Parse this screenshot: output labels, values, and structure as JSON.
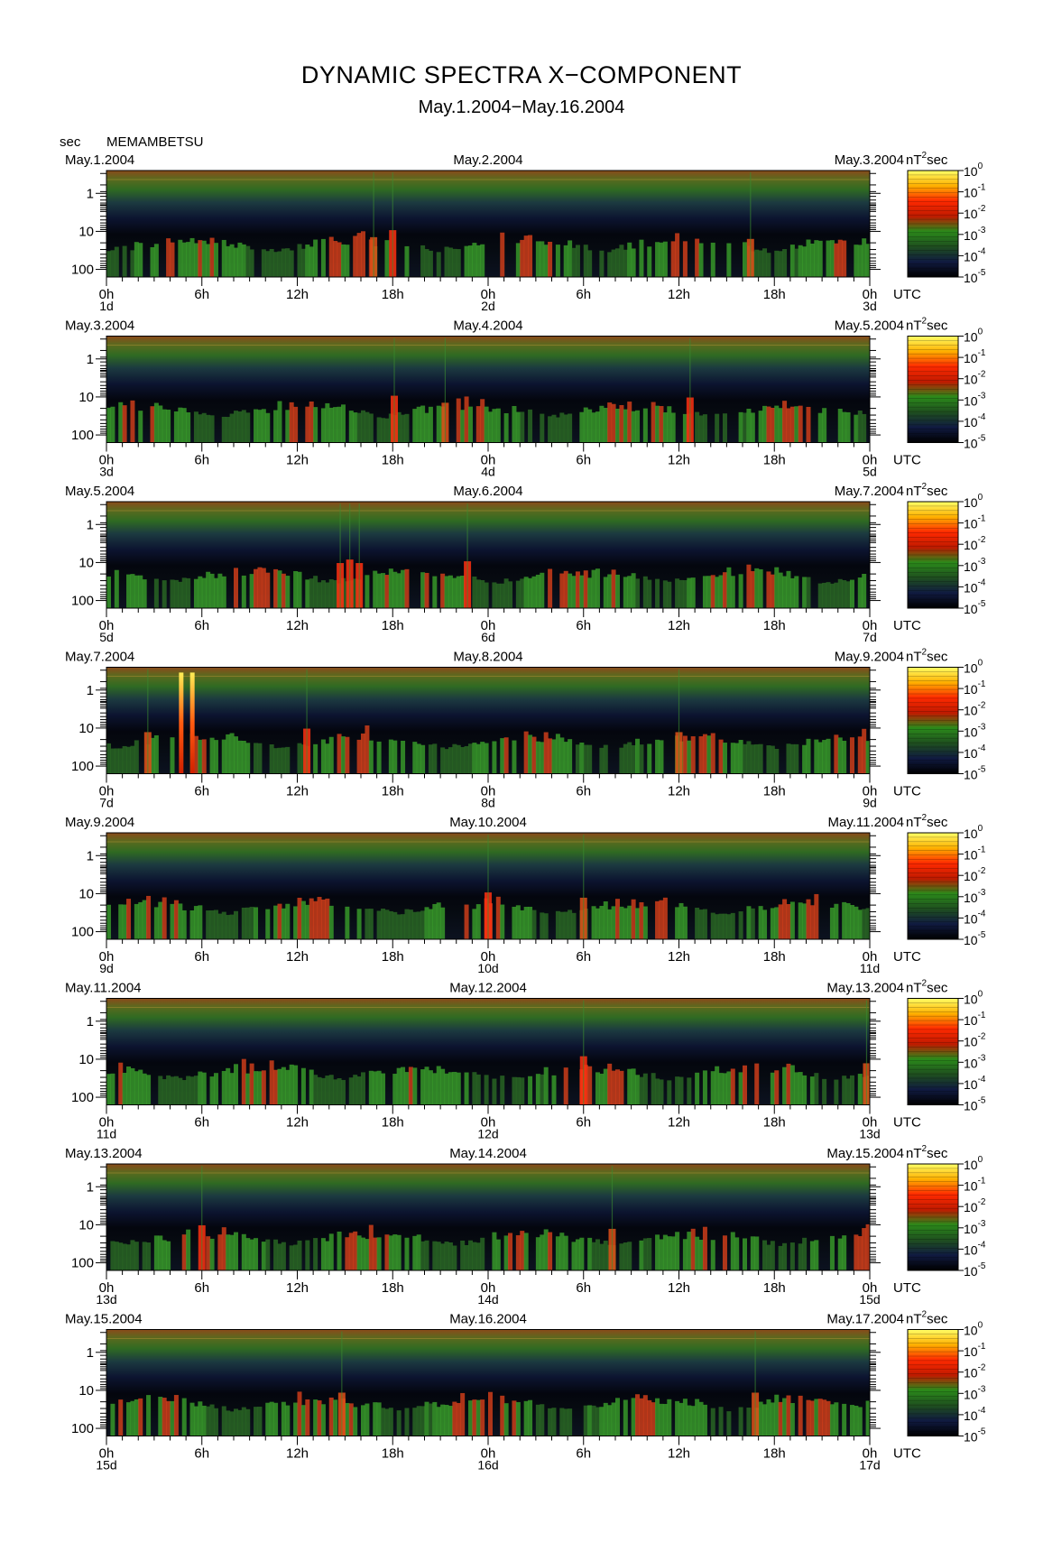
{
  "title": "DYNAMIC SPECTRA X−COMPONENT",
  "subtitle": "May.1.2004−May.16.2004",
  "station_unit": "sec",
  "station": "MEMAMBETSU",
  "power_unit_base": "nT",
  "power_unit_exp": "2",
  "power_unit_suffix": "sec",
  "timezone": "UTC",
  "chart_data": {
    "type": "heatmap",
    "title": "DYNAMIC SPECTRA X−COMPONENT",
    "subtitle": "May.1.2004−May.16.2004",
    "ylabel": "sec",
    "y_scale": "log",
    "y_ticks": [
      "1",
      "10",
      "100"
    ],
    "x_tick_hours": [
      "0h",
      "6h",
      "12h",
      "18h",
      "0h",
      "6h",
      "12h",
      "18h",
      "0h"
    ],
    "colorbar": {
      "unit": "nT²sec",
      "scale": "log",
      "ticks": [
        {
          "base": "10",
          "exp": "0"
        },
        {
          "base": "10",
          "exp": "-1"
        },
        {
          "base": "10",
          "exp": "-2"
        },
        {
          "base": "10",
          "exp": "-3"
        },
        {
          "base": "10",
          "exp": "-4"
        },
        {
          "base": "10",
          "exp": "-5"
        }
      ],
      "colors": [
        "#ffff66",
        "#ffb000",
        "#ff2a00",
        "#c01a00",
        "#2b8a1a",
        "#1f4f1f",
        "#101a40",
        "#000000"
      ]
    },
    "panels": [
      {
        "date_left": "May.1.2004",
        "date_mid": "May.2.2004",
        "date_right": "May.3.2004",
        "day_labels": [
          "1d",
          "2d",
          "3d"
        ],
        "events": [
          {
            "t": 16.8,
            "strength": 0.55
          },
          {
            "t": 18.0,
            "strength": 0.75
          },
          {
            "t": 40.5,
            "strength": 0.5
          }
        ]
      },
      {
        "date_left": "May.3.2004",
        "date_mid": "May.4.2004",
        "date_right": "May.5.2004",
        "day_labels": [
          "3d",
          "4d",
          "5d"
        ],
        "events": [
          {
            "t": 18.1,
            "strength": 0.75
          },
          {
            "t": 21.3,
            "strength": 0.55
          },
          {
            "t": 36.7,
            "strength": 0.7
          }
        ]
      },
      {
        "date_left": "May.5.2004",
        "date_mid": "May.6.2004",
        "date_right": "May.7.2004",
        "day_labels": [
          "5d",
          "6d",
          "7d"
        ],
        "events": [
          {
            "t": 14.7,
            "strength": 0.7
          },
          {
            "t": 15.3,
            "strength": 0.8
          },
          {
            "t": 15.9,
            "strength": 0.7
          },
          {
            "t": 22.7,
            "strength": 0.75
          }
        ]
      },
      {
        "date_left": "May.7.2004",
        "date_mid": "May.8.2004",
        "date_right": "May.9.2004",
        "day_labels": [
          "7d",
          "8d",
          "9d"
        ],
        "events": [
          {
            "t": 2.6,
            "strength": 0.6
          },
          {
            "t": 4.7,
            "strength": 1.0
          },
          {
            "t": 5.4,
            "strength": 1.0
          },
          {
            "t": 12.6,
            "strength": 0.7
          },
          {
            "t": 36.0,
            "strength": 0.6
          }
        ]
      },
      {
        "date_left": "May.9.2004",
        "date_mid": "May.10.2004",
        "date_right": "May.11.2004",
        "day_labels": [
          "9d",
          "10d",
          "11d"
        ],
        "events": [
          {
            "t": 24.0,
            "strength": 0.75
          },
          {
            "t": 30.0,
            "strength": 0.6
          }
        ]
      },
      {
        "date_left": "May.11.2004",
        "date_mid": "May.12.2004",
        "date_right": "May.13.2004",
        "day_labels": [
          "11d",
          "12d",
          "13d"
        ],
        "events": [
          {
            "t": 30.0,
            "strength": 0.8
          },
          {
            "t": 47.8,
            "strength": 0.6
          }
        ]
      },
      {
        "date_left": "May.13.2004",
        "date_mid": "May.14.2004",
        "date_right": "May.15.2004",
        "day_labels": [
          "13d",
          "14d",
          "15d"
        ],
        "events": [
          {
            "t": 6.0,
            "strength": 0.7
          },
          {
            "t": 31.8,
            "strength": 0.6
          }
        ]
      },
      {
        "date_left": "May.15.2004",
        "date_mid": "May.16.2004",
        "date_right": "May.17.2004",
        "day_labels": [
          "15d",
          "16d",
          "17d"
        ],
        "events": [
          {
            "t": 14.8,
            "strength": 0.65
          },
          {
            "t": 40.8,
            "strength": 0.65
          }
        ]
      }
    ]
  }
}
